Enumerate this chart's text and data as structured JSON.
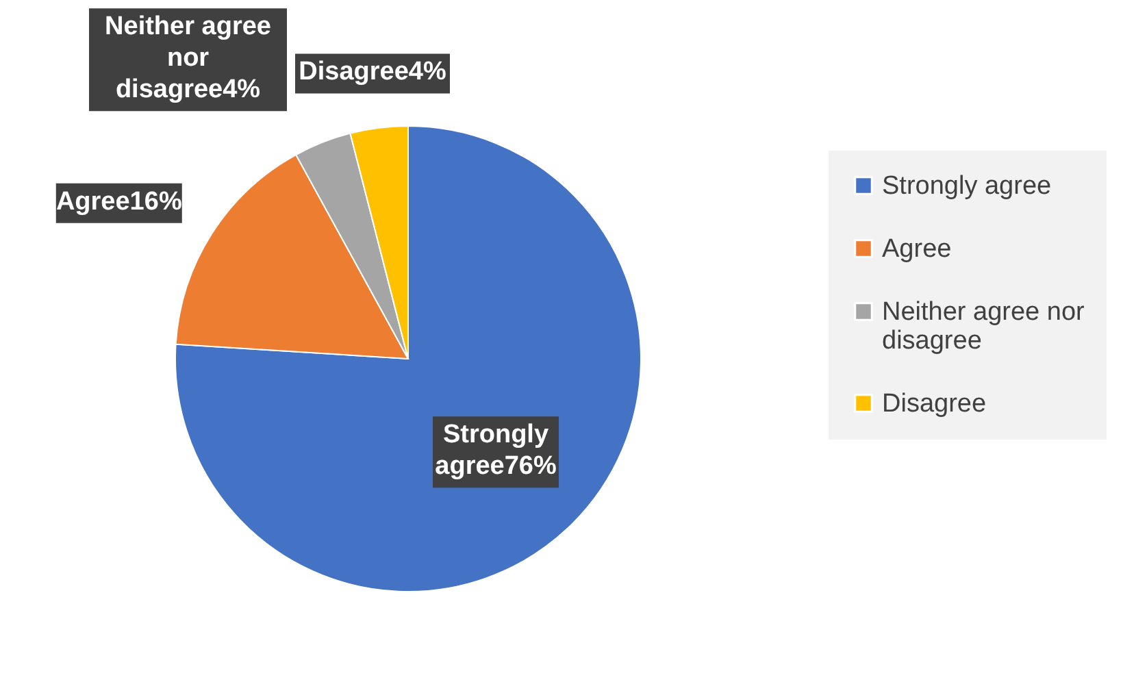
{
  "chart_data": {
    "type": "pie",
    "categories": [
      "Strongly agree",
      "Agree",
      "Neither agree nor disagree",
      "Disagree"
    ],
    "values": [
      76,
      16,
      4,
      4
    ],
    "colors": [
      "#4472c4",
      "#ed7d31",
      "#a5a5a5",
      "#ffc000"
    ],
    "value_labels": [
      "Strongly agree76%",
      "Agree16%",
      "Neither agree nor disagree4%",
      "Disagree4%"
    ],
    "legend": "right"
  }
}
